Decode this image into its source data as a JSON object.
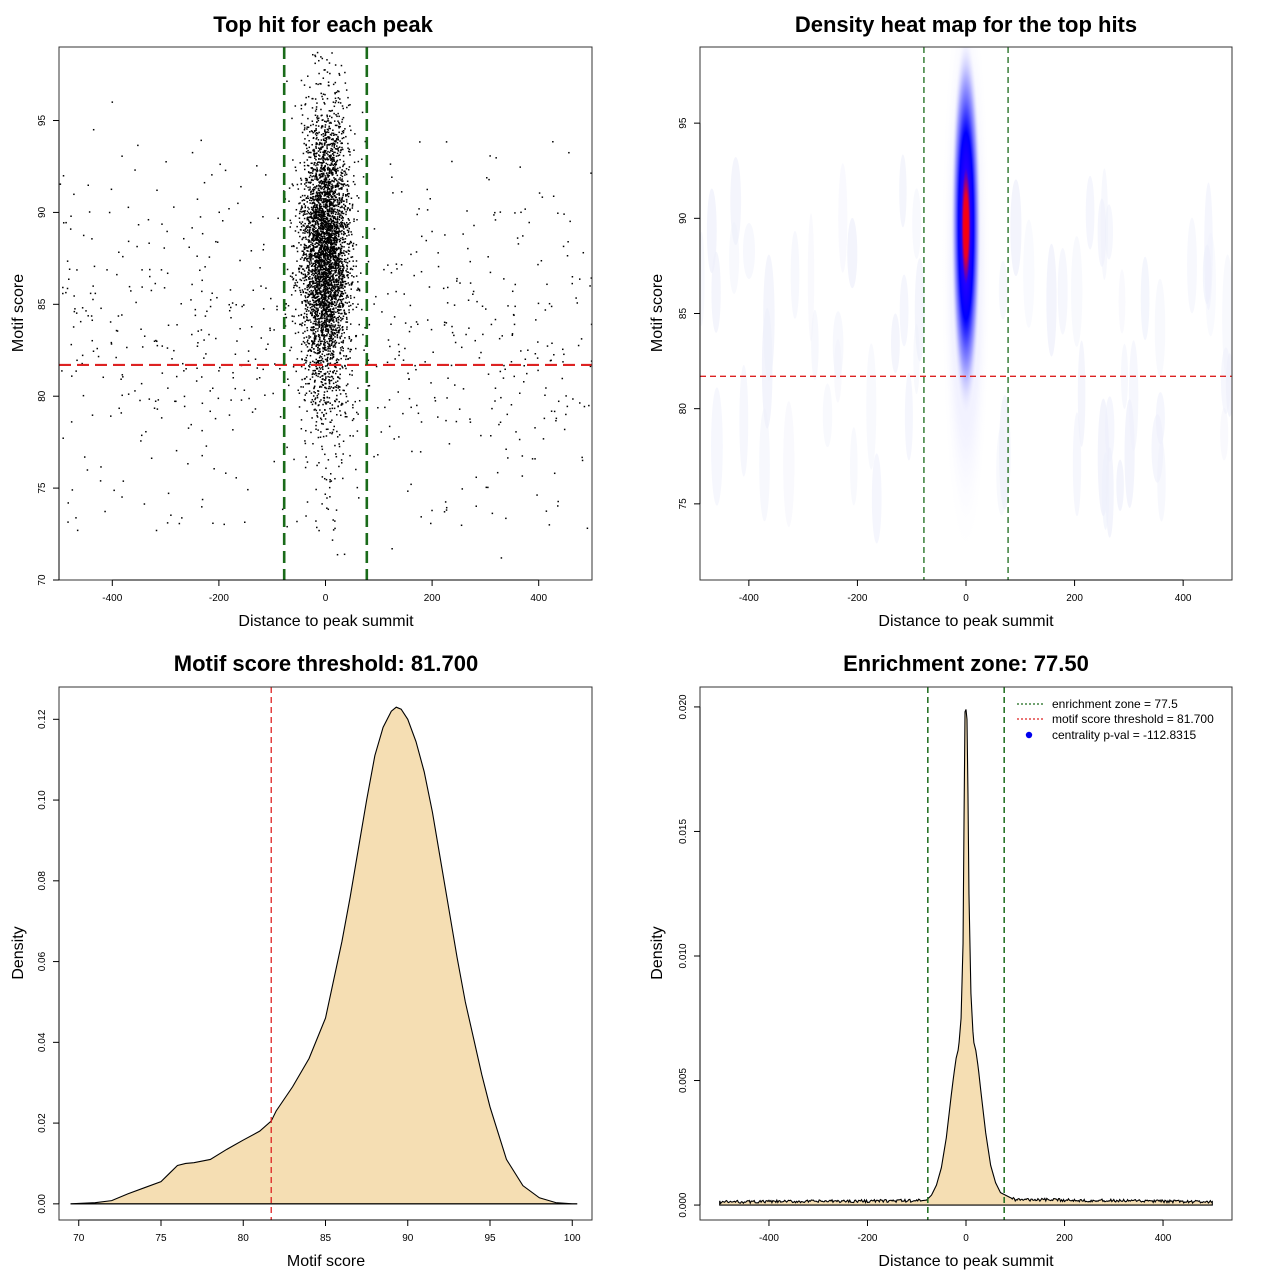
{
  "colors": {
    "threshold": "#dd2222",
    "zone": "#1a6b1a",
    "fill": "#f5deb3",
    "point": "#000000",
    "legend_dot": "#0000ee",
    "heat_low": "#ffffff",
    "heat_mid": "#0000ff",
    "heat_high": "#ff0000"
  },
  "chart_data": [
    {
      "id": "scatter",
      "type": "scatter",
      "title": "Top hit for each peak",
      "xlabel": "Distance to peak summit",
      "ylabel": "Motif score",
      "xlim": [
        -500,
        500
      ],
      "ylim": [
        70,
        99
      ],
      "xticks": [
        -400,
        -200,
        0,
        200,
        400
      ],
      "xtick_labels": [
        "-400",
        "-200",
        "0",
        "200",
        "400"
      ],
      "yticks": [
        70,
        75,
        80,
        85,
        90,
        95
      ],
      "ytick_labels": [
        "70",
        "75",
        "80",
        "85",
        "90",
        "95"
      ],
      "hline": 81.7,
      "vlines": [
        -77.5,
        77.5
      ],
      "central_cluster": {
        "count": 4200,
        "x_sd": 22,
        "y_mean": 88.8,
        "y_sd": 3.6
      },
      "background": {
        "count": 680,
        "x_range": [
          -500,
          500
        ],
        "y_mean": 83,
        "y_sd": 5
      },
      "outliers": [
        {
          "x": -400,
          "y": 96
        },
        {
          "x": -435,
          "y": 94.5
        },
        {
          "x": 330,
          "y": 71.2
        },
        {
          "x": 125,
          "y": 71.7
        },
        {
          "x": -465,
          "y": 72.7
        },
        {
          "x": 420,
          "y": 73
        }
      ]
    },
    {
      "id": "heatmap",
      "type": "heatmap",
      "title": "Density heat map for the top hits",
      "xlabel": "Distance to peak summit",
      "ylabel": "Motif score",
      "xlim": [
        -490,
        490
      ],
      "ylim": [
        71,
        99
      ],
      "xticks": [
        -400,
        -200,
        0,
        200,
        400
      ],
      "xtick_labels": [
        "-400",
        "-200",
        "0",
        "200",
        "400"
      ],
      "yticks": [
        75,
        80,
        85,
        90,
        95
      ],
      "ytick_labels": [
        "75",
        "80",
        "85",
        "90",
        "95"
      ],
      "hline": 81.7,
      "vlines": [
        -77.5,
        77.5
      ],
      "hotspot": {
        "x": 0,
        "y": 89.6,
        "x_sd": 11,
        "y_sd": 3.0
      }
    },
    {
      "id": "score_density",
      "type": "area",
      "title": "Motif score threshold: 81.700",
      "xlabel": "Motif score",
      "ylabel": "Density",
      "xlim": [
        68.8,
        101.2
      ],
      "ylim": [
        -0.004,
        0.128
      ],
      "xticks": [
        70,
        75,
        80,
        85,
        90,
        95,
        100
      ],
      "xtick_labels": [
        "70",
        "75",
        "80",
        "85",
        "90",
        "95",
        "100"
      ],
      "yticks": [
        0,
        0.02,
        0.04,
        0.06,
        0.08,
        0.1,
        0.12
      ],
      "ytick_labels": [
        "0.00",
        "0.02",
        "0.04",
        "0.06",
        "0.08",
        "0.10",
        "0.12"
      ],
      "vline": 81.7,
      "x": [
        69.5,
        71,
        72,
        73,
        74,
        75,
        75.5,
        76,
        76.5,
        77,
        78,
        79,
        80,
        81,
        81.7,
        82,
        83,
        84,
        85,
        86,
        86.5,
        87,
        87.5,
        88,
        88.5,
        89,
        89.3,
        89.6,
        90,
        90.5,
        91,
        91.5,
        92,
        92.5,
        93,
        93.5,
        94,
        94.5,
        95,
        96,
        97,
        98,
        99,
        100,
        100.3
      ],
      "y": [
        0.0,
        0.0003,
        0.0008,
        0.0025,
        0.004,
        0.0055,
        0.0075,
        0.0095,
        0.01,
        0.0102,
        0.011,
        0.0135,
        0.0158,
        0.018,
        0.0205,
        0.023,
        0.029,
        0.036,
        0.046,
        0.065,
        0.076,
        0.088,
        0.1,
        0.111,
        0.118,
        0.122,
        0.123,
        0.1225,
        0.12,
        0.1145,
        0.107,
        0.097,
        0.085,
        0.073,
        0.061,
        0.05,
        0.041,
        0.032,
        0.024,
        0.011,
        0.0045,
        0.0015,
        0.0003,
        0.0,
        0.0
      ]
    },
    {
      "id": "distance_density",
      "type": "area",
      "title": "Enrichment zone: 77.50",
      "xlabel": "Distance to peak summit",
      "ylabel": "Density",
      "xlim": [
        -540,
        540
      ],
      "ylim": [
        -0.0006,
        0.0208
      ],
      "xticks": [
        -400,
        -200,
        0,
        200,
        400
      ],
      "xtick_labels": [
        "-400",
        "-200",
        "0",
        "200",
        "400"
      ],
      "yticks": [
        0,
        0.005,
        0.01,
        0.015,
        0.02
      ],
      "ytick_labels": [
        "0.000",
        "0.005",
        "0.010",
        "0.015",
        "0.020"
      ],
      "vlines": [
        -77.5,
        77.5
      ],
      "baseline": 0.0001,
      "x": [
        -500,
        -100,
        -80,
        -70,
        -60,
        -50,
        -40,
        -30,
        -25,
        -20,
        -15,
        -10,
        -6,
        -4,
        -2,
        0,
        2,
        4,
        6,
        10,
        15,
        20,
        25,
        30,
        40,
        50,
        60,
        70,
        80,
        100,
        500
      ],
      "y": [
        0.0001,
        0.00015,
        0.0002,
        0.0004,
        0.0008,
        0.0015,
        0.0027,
        0.0044,
        0.0052,
        0.0059,
        0.0063,
        0.0075,
        0.0105,
        0.0155,
        0.0198,
        0.0199,
        0.0195,
        0.0165,
        0.0125,
        0.0085,
        0.0066,
        0.0062,
        0.0055,
        0.0046,
        0.0029,
        0.0016,
        0.0009,
        0.0005,
        0.0004,
        0.0002,
        0.0001
      ],
      "legend": [
        {
          "label": "enrichment zone = 77.5",
          "kind": "line",
          "color_key": "zone"
        },
        {
          "label": "motif score threshold = 81.700",
          "kind": "line",
          "color_key": "threshold"
        },
        {
          "label": "centrality p-val = -112.8315",
          "kind": "dot",
          "color_key": "legend_dot"
        }
      ]
    }
  ]
}
